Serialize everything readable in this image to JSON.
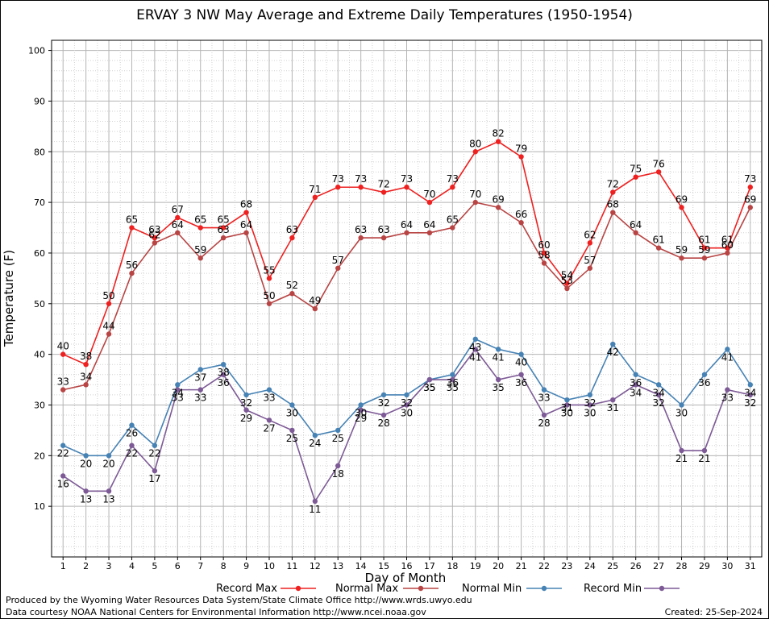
{
  "footer": {
    "credit_line_1": "Produced by the Wyoming Water Resources Data System/State Climate Office http://www.wrds.uwyo.edu",
    "credit_line_2": "Data courtesy NOAA National Centers for Environmental Information http://www.ncei.noaa.gov",
    "created": "Created:  25-Sep-2024"
  },
  "chart_data": {
    "type": "line",
    "title": "ERVAY 3 NW May Average and Extreme Daily Temperatures (1950-1954)",
    "xlabel": "Day of Month",
    "ylabel": "Temperature (F)",
    "x": [
      1,
      2,
      3,
      4,
      5,
      6,
      7,
      8,
      9,
      10,
      11,
      12,
      13,
      14,
      15,
      16,
      17,
      18,
      19,
      20,
      21,
      22,
      23,
      24,
      25,
      26,
      27,
      28,
      29,
      30,
      31
    ],
    "xlim": [
      0.5,
      31.5
    ],
    "ylim": [
      0,
      102
    ],
    "yticks": [
      10,
      20,
      30,
      40,
      50,
      60,
      70,
      80,
      90,
      100
    ],
    "grid": true,
    "legend_position": "bottom",
    "series": [
      {
        "name": "Record Max",
        "color": "#ee2020",
        "values": [
          40,
          38,
          50,
          65,
          63,
          67,
          65,
          65,
          68,
          55,
          63,
          71,
          73,
          73,
          72,
          73,
          70,
          73,
          80,
          82,
          79,
          60,
          54,
          62,
          72,
          75,
          76,
          69,
          61,
          61,
          73
        ]
      },
      {
        "name": "Normal Max",
        "color": "#b84444",
        "values": [
          33,
          34,
          44,
          56,
          62,
          64,
          59,
          63,
          64,
          50,
          52,
          49,
          57,
          63,
          63,
          64,
          64,
          65,
          70,
          69,
          66,
          58,
          53,
          57,
          68,
          64,
          61,
          59,
          59,
          60,
          69
        ]
      },
      {
        "name": "Normal Min",
        "color": "#4682b4",
        "values": [
          22,
          20,
          20,
          26,
          22,
          34,
          37,
          38,
          32,
          33,
          30,
          24,
          25,
          30,
          32,
          32,
          35,
          36,
          43,
          41,
          40,
          33,
          31,
          32,
          42,
          36,
          34,
          30,
          36,
          41,
          34
        ]
      },
      {
        "name": "Record Min",
        "color": "#7d5a96",
        "values": [
          16,
          13,
          13,
          22,
          17,
          33,
          33,
          36,
          29,
          27,
          25,
          11,
          18,
          29,
          28,
          30,
          35,
          35,
          41,
          35,
          36,
          28,
          30,
          30,
          31,
          34,
          32,
          21,
          21,
          33,
          32
        ]
      }
    ]
  }
}
